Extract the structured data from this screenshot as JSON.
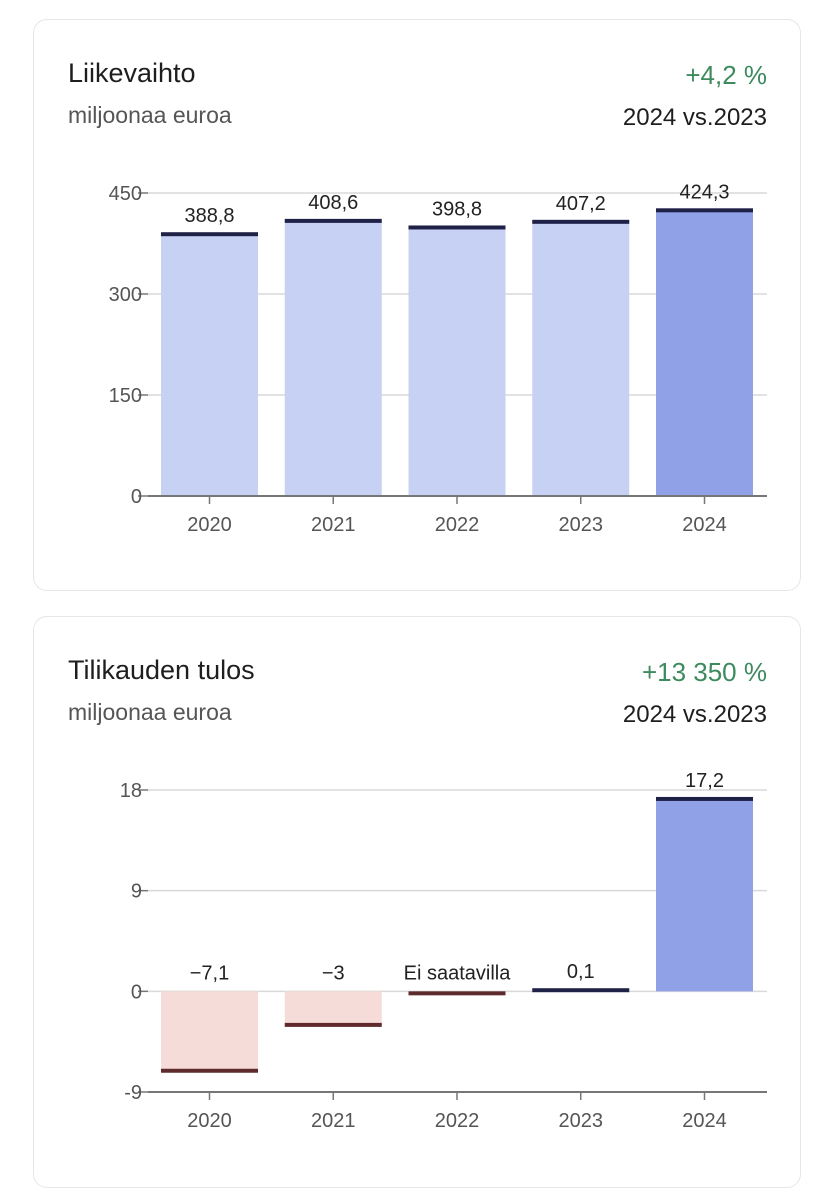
{
  "chart_data": [
    {
      "type": "bar",
      "title": "Liikevaihto",
      "subtitle": "miljoonaa euroa",
      "change": "+4,2 %",
      "comparison": "2024 vs.2023",
      "categories": [
        "2020",
        "2021",
        "2022",
        "2023",
        "2024"
      ],
      "values": [
        388.8,
        408.6,
        398.8,
        407.2,
        424.3
      ],
      "labels": [
        "388,8",
        "408,6",
        "398,8",
        "407,2",
        "424,3"
      ],
      "yticks": [
        0,
        150,
        300,
        450
      ],
      "ylim": [
        0,
        450
      ],
      "grid": true,
      "colors": {
        "bar": "#c7d1f4",
        "highlight": "#91a1e8",
        "cap": "#1f2147",
        "neg": "#f6dcd8",
        "negcap": "#5e2a2c"
      }
    },
    {
      "type": "bar",
      "title": "Tilikauden tulos",
      "subtitle": "miljoonaa euroa",
      "change": "+13 350 %",
      "comparison": "2024 vs.2023",
      "categories": [
        "2020",
        "2021",
        "2022",
        "2023",
        "2024"
      ],
      "values": [
        -7.1,
        -3,
        null,
        0.1,
        17.2
      ],
      "labels": [
        "−7,1",
        "−3",
        "Ei saatavilla",
        "0,1",
        "17,2"
      ],
      "yticks": [
        -9,
        0,
        9,
        18
      ],
      "ylim": [
        -9,
        18
      ],
      "grid": true,
      "colors": {
        "bar": "#c7d1f4",
        "highlight": "#91a1e8",
        "cap": "#1f2147",
        "neg": "#f6dcd8",
        "negcap": "#5e2a2c"
      }
    }
  ]
}
